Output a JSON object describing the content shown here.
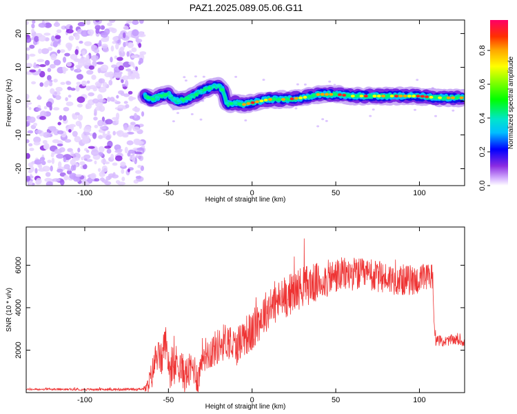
{
  "title": "PAZ1.2025.089.05.06.G11",
  "chart_data": [
    {
      "type": "heatmap",
      "xlabel": "Height of straight line (km)",
      "ylabel": "Frequency (Hz)",
      "xlim": [
        -135,
        127
      ],
      "ylim": [
        -25,
        24
      ],
      "xticks": [
        -100,
        -50,
        0,
        50,
        100
      ],
      "yticks": [
        -20,
        -10,
        0,
        10,
        20
      ],
      "noise_region_x": [
        -135,
        -65
      ],
      "ridge": {
        "x": [
          -64,
          -60,
          -55,
          -50,
          -45,
          -40,
          -35,
          -30,
          -25,
          -20,
          -17,
          -15,
          -10,
          -5,
          0,
          10,
          20,
          30,
          40,
          50,
          60,
          70,
          80,
          90,
          100,
          110,
          120,
          127
        ],
        "y": [
          1.5,
          0.5,
          1.5,
          2.0,
          0.0,
          0.5,
          1.5,
          3.0,
          4.0,
          4.5,
          3.0,
          -1.0,
          -0.5,
          -1.0,
          -0.5,
          0.5,
          0.5,
          1.0,
          2.0,
          2.0,
          1.5,
          1.5,
          1.5,
          1.5,
          1.5,
          1.0,
          1.0,
          1.0
        ]
      },
      "colorbar": {
        "label": "Normalized spectral amplitude",
        "range": [
          0,
          0.98
        ],
        "ticks": [
          0.0,
          0.2,
          0.4,
          0.6,
          0.8
        ],
        "tick_labels": [
          "0.0",
          "0.2",
          "0.4",
          "0.6",
          "0.8"
        ]
      }
    },
    {
      "type": "line",
      "xlabel": "Height of straight line (km)",
      "ylabel": "SNR (10 * v/v)",
      "xlim": [
        -135,
        127
      ],
      "ylim": [
        0,
        7800
      ],
      "xticks": [
        -100,
        -50,
        0,
        50,
        100
      ],
      "yticks": [
        2000,
        4000,
        6000
      ],
      "color": "#ee3333",
      "envelope": {
        "x": [
          -135,
          -100,
          -70,
          -63,
          -60,
          -57,
          -54,
          -52,
          -50,
          -48,
          -45,
          -40,
          -35,
          -32,
          -30,
          -25,
          -20,
          -15,
          -10,
          -5,
          0,
          5,
          10,
          20,
          30,
          40,
          50,
          60,
          70,
          80,
          90,
          100,
          105,
          108,
          109,
          115,
          120,
          127
        ],
        "y": [
          150,
          150,
          150,
          200,
          800,
          1800,
          1500,
          2500,
          1500,
          700,
          1500,
          800,
          1200,
          600,
          1800,
          1900,
          2200,
          2500,
          2100,
          2700,
          2800,
          3500,
          4000,
          4500,
          5000,
          5200,
          5500,
          5600,
          5500,
          5400,
          5300,
          5300,
          5400,
          5500,
          2500,
          2400,
          2500,
          2400
        ]
      },
      "noise_amplitude": {
        "x": [
          -135,
          -65,
          -60,
          -50,
          -30,
          0,
          30,
          60,
          108,
          110,
          127
        ],
        "y": [
          40,
          60,
          700,
          900,
          800,
          1000,
          1000,
          800,
          700,
          250,
          250
        ]
      }
    }
  ]
}
